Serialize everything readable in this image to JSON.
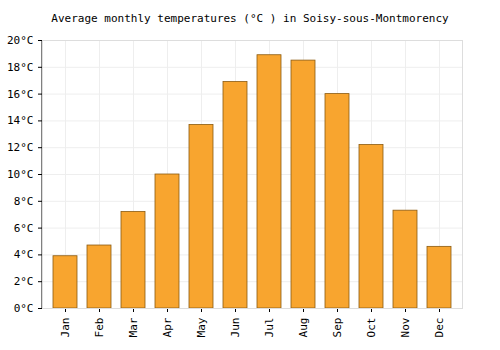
{
  "chart_data": {
    "type": "bar",
    "title": "Average monthly temperatures (°C ) in Soisy-sous-Montmorency",
    "categories": [
      "Jan",
      "Feb",
      "Mar",
      "Apr",
      "May",
      "Jun",
      "Jul",
      "Aug",
      "Sep",
      "Oct",
      "Nov",
      "Dec"
    ],
    "values": [
      3.9,
      4.7,
      7.2,
      10.0,
      13.7,
      16.9,
      18.9,
      18.5,
      16.0,
      12.2,
      7.3,
      4.6
    ],
    "color": "#f8a52f",
    "ylim": [
      0,
      20
    ],
    "yticks": [
      {
        "value": 0,
        "label": "0°C"
      },
      {
        "value": 2,
        "label": "2°C"
      },
      {
        "value": 4,
        "label": "4°C"
      },
      {
        "value": 6,
        "label": "6°C"
      },
      {
        "value": 8,
        "label": "8°C"
      },
      {
        "value": 10,
        "label": "10°C"
      },
      {
        "value": 12,
        "label": "12°C"
      },
      {
        "value": 14,
        "label": "14°C"
      },
      {
        "value": 16,
        "label": "16°C"
      },
      {
        "value": 18,
        "label": "18°C"
      },
      {
        "value": 20,
        "label": "20°C"
      }
    ],
    "grid": true
  }
}
